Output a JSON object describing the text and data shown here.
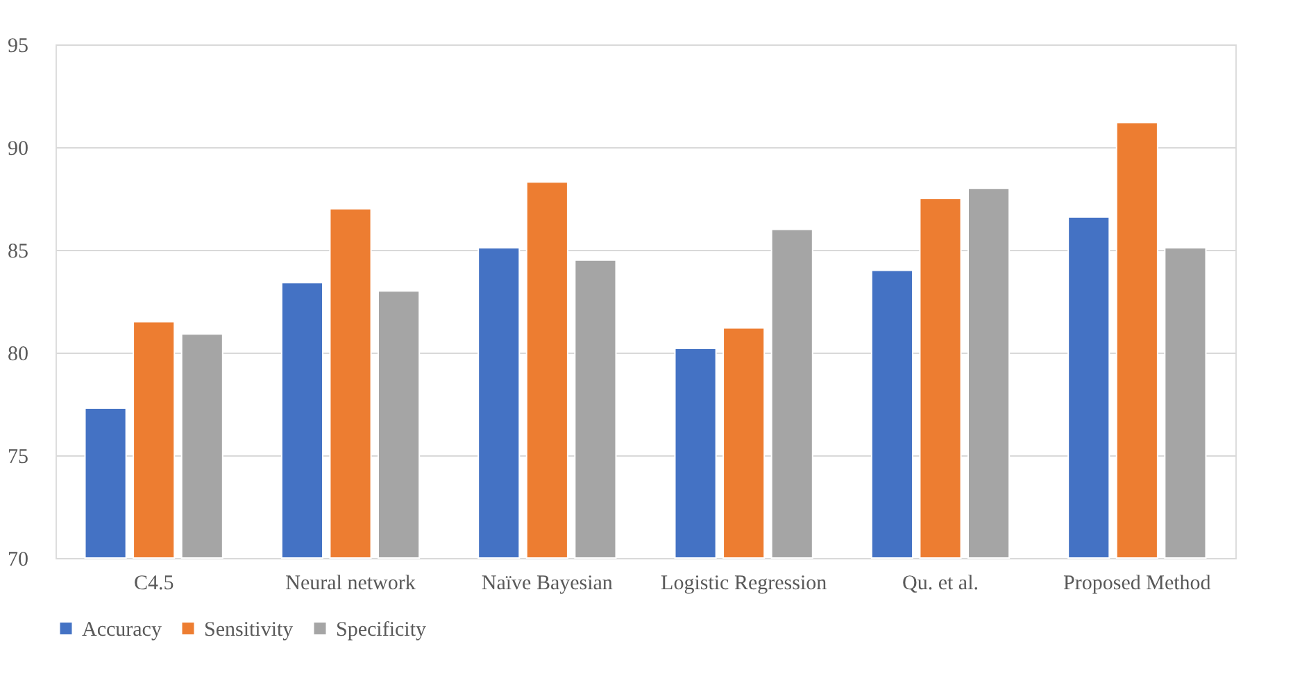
{
  "chart_data": {
    "type": "bar",
    "categories": [
      "C4.5",
      "Neural network",
      "Naïve Bayesian",
      "Logistic Regression",
      "Qu. et al.",
      "Proposed Method"
    ],
    "series": [
      {
        "name": "Accuracy",
        "color": "#4472c4",
        "values": [
          77.3,
          83.4,
          85.1,
          80.2,
          84.0,
          86.6
        ]
      },
      {
        "name": "Sensitivity",
        "color": "#ed7d31",
        "values": [
          81.5,
          87.0,
          88.3,
          81.2,
          87.5,
          91.2
        ]
      },
      {
        "name": "Specificity",
        "color": "#a5a5a5",
        "values": [
          80.9,
          83.0,
          84.5,
          86.0,
          88.0,
          85.1
        ]
      }
    ],
    "ylim": [
      70,
      95
    ],
    "yticks": [
      70,
      75,
      80,
      85,
      90,
      95
    ],
    "grid": "y",
    "legend": "bottom"
  }
}
